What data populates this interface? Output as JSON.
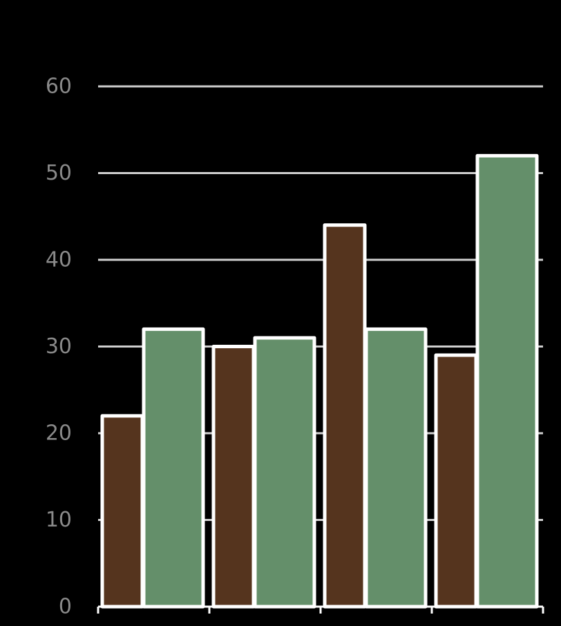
{
  "chart_data": {
    "type": "bar",
    "categories": [
      "",
      "",
      "",
      ""
    ],
    "series": [
      {
        "values": [
          22,
          30,
          44,
          29
        ]
      },
      {
        "values": [
          32,
          31,
          32,
          52
        ]
      }
    ],
    "ylim": [
      0,
      60
    ],
    "yticks": [
      "0",
      "10",
      "20",
      "30",
      "40",
      "50",
      "60"
    ],
    "grid": true,
    "legend": "none",
    "colors": {
      "background": "#000000",
      "series_0": "#55341e",
      "series_1": "#648f6a",
      "bar_outline": "#ffffff",
      "gridline": "#cfcfcf",
      "tick_label": "#8a8a8a"
    }
  }
}
